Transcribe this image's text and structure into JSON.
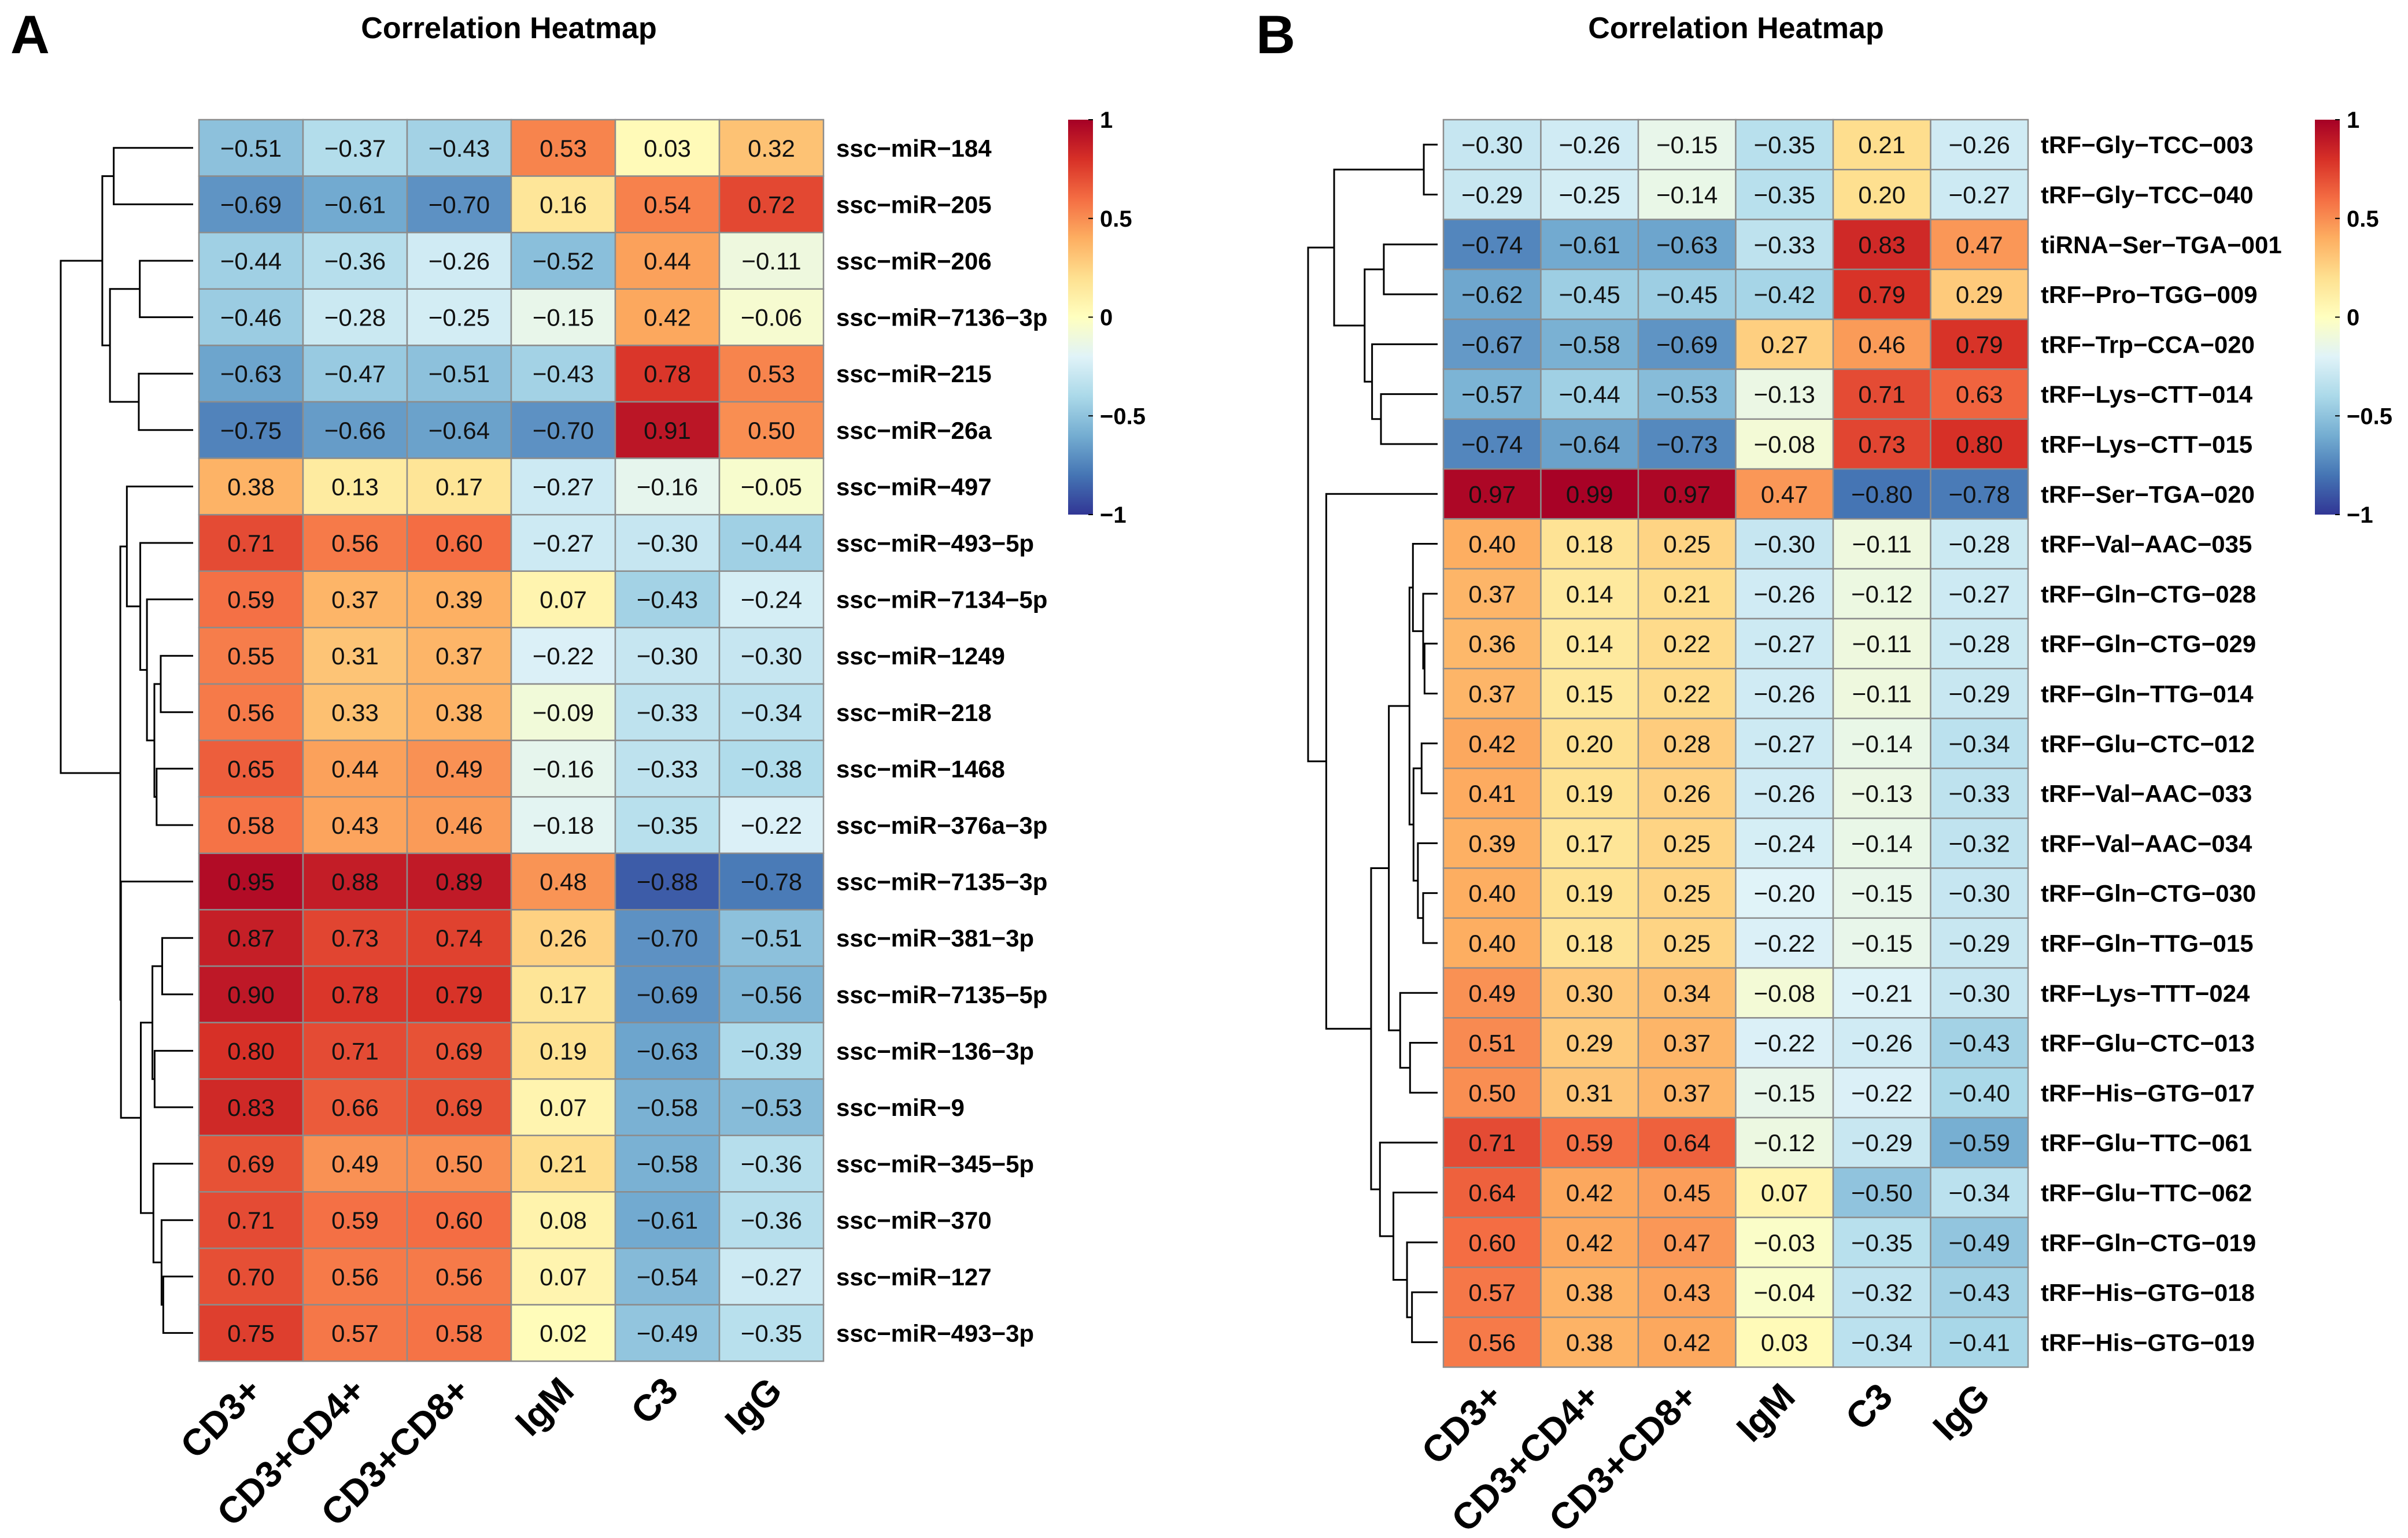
{
  "colorscale": {
    "ticks": [
      1,
      0.5,
      0,
      -0.5,
      -1
    ],
    "tick_labels": [
      "1",
      "0.5",
      "0",
      "−0.5",
      "−1"
    ],
    "stops": [
      "#313695",
      "#4575B4",
      "#74ADD1",
      "#ABD9E9",
      "#E0F3F8",
      "#FFFFBF",
      "#FEE090",
      "#FDAE61",
      "#F46D43",
      "#D73027",
      "#A50026"
    ]
  },
  "chart_data": [
    {
      "panel": "A",
      "type": "heatmap",
      "title": "Correlation Heatmap",
      "columns": [
        "CD3+",
        "CD3+CD4+",
        "CD3+CD8+",
        "IgM",
        "C3",
        "IgG"
      ],
      "rows": [
        "ssc−miR−184",
        "ssc−miR−205",
        "ssc−miR−206",
        "ssc−miR−7136−3p",
        "ssc−miR−215",
        "ssc−miR−26a",
        "ssc−miR−497",
        "ssc−miR−493−5p",
        "ssc−miR−7134−5p",
        "ssc−miR−1249",
        "ssc−miR−218",
        "ssc−miR−1468",
        "ssc−miR−376a−3p",
        "ssc−miR−7135−3p",
        "ssc−miR−381−3p",
        "ssc−miR−7135−5p",
        "ssc−miR−136−3p",
        "ssc−miR−9",
        "ssc−miR−345−5p",
        "ssc−miR−370",
        "ssc−miR−127",
        "ssc−miR−493−3p"
      ],
      "values": [
        [
          -0.51,
          -0.37,
          -0.43,
          0.53,
          0.03,
          0.32
        ],
        [
          -0.69,
          -0.61,
          -0.7,
          0.16,
          0.54,
          0.72
        ],
        [
          -0.44,
          -0.36,
          -0.26,
          -0.52,
          0.44,
          -0.11
        ],
        [
          -0.46,
          -0.28,
          -0.25,
          -0.15,
          0.42,
          -0.06
        ],
        [
          -0.63,
          -0.47,
          -0.51,
          -0.43,
          0.78,
          0.53
        ],
        [
          -0.75,
          -0.66,
          -0.64,
          -0.7,
          0.91,
          0.5
        ],
        [
          0.38,
          0.13,
          0.17,
          -0.27,
          -0.16,
          -0.05
        ],
        [
          0.71,
          0.56,
          0.6,
          -0.27,
          -0.3,
          -0.44
        ],
        [
          0.59,
          0.37,
          0.39,
          0.07,
          -0.43,
          -0.24
        ],
        [
          0.55,
          0.31,
          0.37,
          -0.22,
          -0.3,
          -0.3
        ],
        [
          0.56,
          0.33,
          0.38,
          -0.09,
          -0.33,
          -0.34
        ],
        [
          0.65,
          0.44,
          0.49,
          -0.16,
          -0.33,
          -0.38
        ],
        [
          0.58,
          0.43,
          0.46,
          -0.18,
          -0.35,
          -0.22
        ],
        [
          0.95,
          0.88,
          0.89,
          0.48,
          -0.88,
          -0.78
        ],
        [
          0.87,
          0.73,
          0.74,
          0.26,
          -0.7,
          -0.51
        ],
        [
          0.9,
          0.78,
          0.79,
          0.17,
          -0.69,
          -0.56
        ],
        [
          0.8,
          0.71,
          0.69,
          0.19,
          -0.63,
          -0.39
        ],
        [
          0.83,
          0.66,
          0.69,
          0.07,
          -0.58,
          -0.53
        ],
        [
          0.69,
          0.49,
          0.5,
          0.21,
          -0.58,
          -0.36
        ],
        [
          0.71,
          0.59,
          0.6,
          0.08,
          -0.61,
          -0.36
        ],
        [
          0.7,
          0.56,
          0.56,
          0.07,
          -0.54,
          -0.27
        ],
        [
          0.75,
          0.57,
          0.58,
          0.02,
          -0.49,
          -0.35
        ]
      ],
      "value_range": [
        -1,
        1
      ]
    },
    {
      "panel": "B",
      "type": "heatmap",
      "title": "Correlation Heatmap",
      "columns": [
        "CD3+",
        "CD3+CD4+",
        "CD3+CD8+",
        "IgM",
        "C3",
        "IgG"
      ],
      "rows": [
        "tRF−Gly−TCC−003",
        "tRF−Gly−TCC−040",
        "tiRNA−Ser−TGA−001",
        "tRF−Pro−TGG−009",
        "tRF−Trp−CCA−020",
        "tRF−Lys−CTT−014",
        "tRF−Lys−CTT−015",
        "tRF−Ser−TGA−020",
        "tRF−Val−AAC−035",
        "tRF−Gln−CTG−028",
        "tRF−Gln−CTG−029",
        "tRF−Gln−TTG−014",
        "tRF−Glu−CTC−012",
        "tRF−Val−AAC−033",
        "tRF−Val−AAC−034",
        "tRF−Gln−CTG−030",
        "tRF−Gln−TTG−015",
        "tRF−Lys−TTT−024",
        "tRF−Glu−CTC−013",
        "tRF−His−GTG−017",
        "tRF−Glu−TTC−061",
        "tRF−Glu−TTC−062",
        "tRF−Gln−CTG−019",
        "tRF−His−GTG−018",
        "tRF−His−GTG−019"
      ],
      "values": [
        [
          -0.3,
          -0.26,
          -0.15,
          -0.35,
          0.21,
          -0.26
        ],
        [
          -0.29,
          -0.25,
          -0.14,
          -0.35,
          0.2,
          -0.27
        ],
        [
          -0.74,
          -0.61,
          -0.63,
          -0.33,
          0.83,
          0.47
        ],
        [
          -0.62,
          -0.45,
          -0.45,
          -0.42,
          0.79,
          0.29
        ],
        [
          -0.67,
          -0.58,
          -0.69,
          0.27,
          0.46,
          0.79
        ],
        [
          -0.57,
          -0.44,
          -0.53,
          -0.13,
          0.71,
          0.63
        ],
        [
          -0.74,
          -0.64,
          -0.73,
          -0.08,
          0.73,
          0.8
        ],
        [
          0.97,
          0.99,
          0.97,
          0.47,
          -0.8,
          -0.78
        ],
        [
          0.4,
          0.18,
          0.25,
          -0.3,
          -0.11,
          -0.28
        ],
        [
          0.37,
          0.14,
          0.21,
          -0.26,
          -0.12,
          -0.27
        ],
        [
          0.36,
          0.14,
          0.22,
          -0.27,
          -0.11,
          -0.28
        ],
        [
          0.37,
          0.15,
          0.22,
          -0.26,
          -0.11,
          -0.29
        ],
        [
          0.42,
          0.2,
          0.28,
          -0.27,
          -0.14,
          -0.34
        ],
        [
          0.41,
          0.19,
          0.26,
          -0.26,
          -0.13,
          -0.33
        ],
        [
          0.39,
          0.17,
          0.25,
          -0.24,
          -0.14,
          -0.32
        ],
        [
          0.4,
          0.19,
          0.25,
          -0.2,
          -0.15,
          -0.3
        ],
        [
          0.4,
          0.18,
          0.25,
          -0.22,
          -0.15,
          -0.29
        ],
        [
          0.49,
          0.3,
          0.34,
          -0.08,
          -0.21,
          -0.3
        ],
        [
          0.51,
          0.29,
          0.37,
          -0.22,
          -0.26,
          -0.43
        ],
        [
          0.5,
          0.31,
          0.37,
          -0.15,
          -0.22,
          -0.4
        ],
        [
          0.71,
          0.59,
          0.64,
          -0.12,
          -0.29,
          -0.59
        ],
        [
          0.64,
          0.42,
          0.45,
          0.07,
          -0.5,
          -0.34
        ],
        [
          0.6,
          0.42,
          0.47,
          -0.03,
          -0.35,
          -0.49
        ],
        [
          0.57,
          0.38,
          0.43,
          -0.04,
          -0.32,
          -0.43
        ],
        [
          0.56,
          0.38,
          0.42,
          0.03,
          -0.34,
          -0.41
        ]
      ],
      "value_range": [
        -1,
        1
      ]
    }
  ]
}
